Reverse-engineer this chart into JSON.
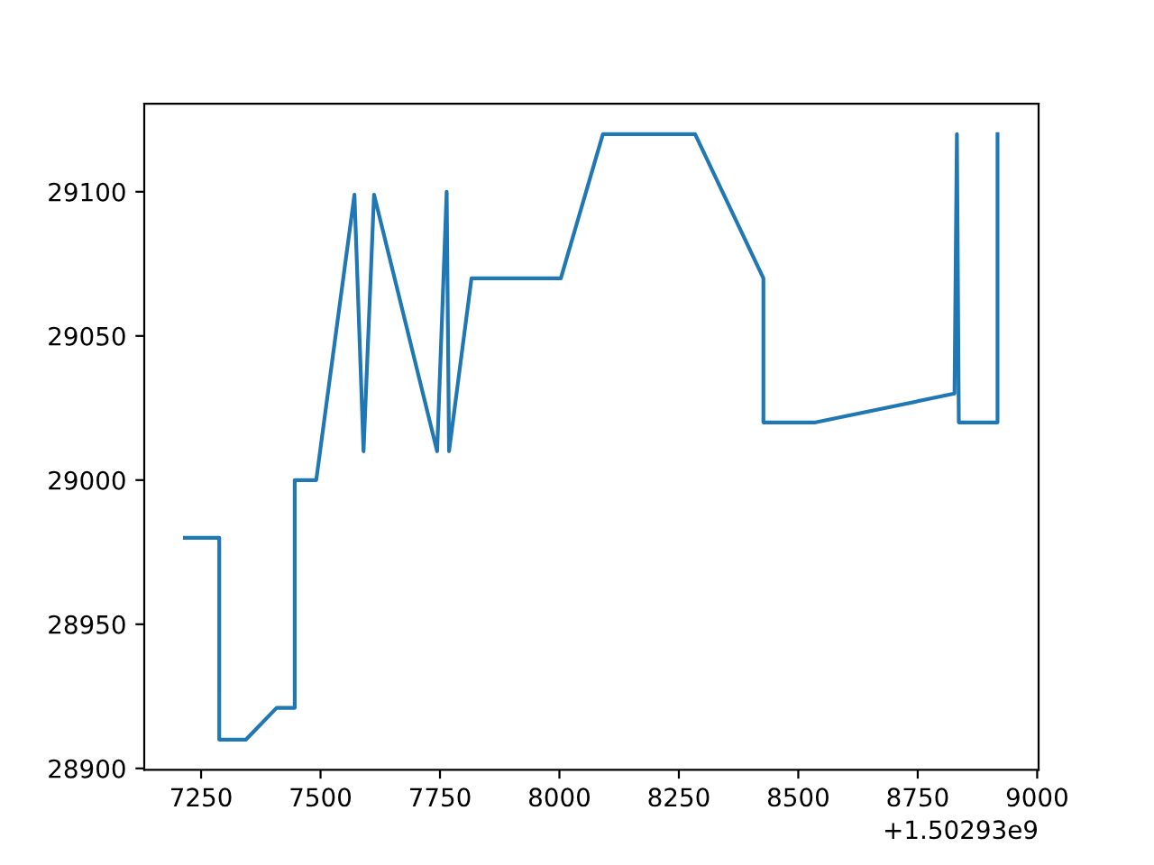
{
  "chart_data": {
    "type": "line",
    "x": [
      7216,
      7288,
      7288,
      7344,
      7408,
      7446,
      7446,
      7491,
      7571,
      7590,
      7612,
      7744,
      7764,
      7769,
      7816,
      8003,
      8091,
      8284,
      8427,
      8427,
      8536,
      8827,
      8832,
      8836,
      8917,
      8917
    ],
    "series": [
      {
        "color": "#1f77b4",
        "values": [
          28980,
          28980,
          28910,
          28910,
          28921,
          28921,
          29000,
          29000,
          29099,
          29010,
          29099,
          29010,
          29100,
          29010,
          29070,
          29070,
          29120,
          29120,
          29070,
          29020,
          29020,
          29030,
          29120,
          29020,
          29020,
          29120
        ]
      }
    ],
    "xlim": [
      7131,
      9003
    ],
    "xticks": [
      7250,
      7500,
      7750,
      8000,
      8250,
      8500,
      8750,
      9000
    ],
    "ylim": [
      28899.5,
      29130.5
    ],
    "yticks": [
      28900,
      28950,
      29000,
      29050,
      29100
    ],
    "annotations": [
      "+1.50293e9"
    ],
    "grid": false,
    "legend": false
  }
}
